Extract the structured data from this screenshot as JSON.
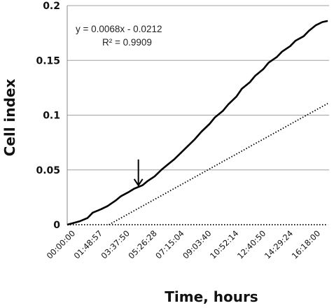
{
  "chart_data": {
    "type": "line",
    "xlabel": "Time, hours",
    "ylabel": "Cell index",
    "ylim": [
      0,
      0.2
    ],
    "y_ticks": [
      "0",
      "0.05",
      "0.1",
      "0.15",
      "0.2"
    ],
    "x_tick_labels": [
      "00:00:00",
      "01:48:57",
      "03:37:50",
      "05:26:28",
      "07:15:04",
      "09:03:40",
      "10:52:14",
      "12:40:50",
      "14:29:24",
      "16:18:00"
    ],
    "gridlines": "horizontal",
    "series": [
      {
        "style": "solid",
        "color": "#000000",
        "x": [
          0,
          0.9,
          1.5,
          1.9,
          2.5,
          3.0,
          3.6,
          4.0,
          4.6,
          5.0,
          5.6,
          6.0,
          6.5,
          7.0,
          7.5,
          8.0,
          8.5,
          9.0,
          9.5,
          10.0,
          10.6,
          11.0,
          11.6,
          12.0,
          12.6,
          13.0,
          13.6,
          14.0,
          14.6,
          15.0,
          15.6,
          16.0,
          16.6,
          17.0,
          17.6,
          18.0,
          18.5,
          19.0,
          19.4
        ],
        "y": [
          0,
          0.003,
          0.006,
          0.011,
          0.014,
          0.017,
          0.022,
          0.026,
          0.03,
          0.033,
          0.036,
          0.04,
          0.044,
          0.05,
          0.055,
          0.06,
          0.066,
          0.072,
          0.078,
          0.085,
          0.092,
          0.098,
          0.104,
          0.11,
          0.117,
          0.124,
          0.13,
          0.136,
          0.142,
          0.148,
          0.153,
          0.158,
          0.163,
          0.168,
          0.172,
          0.177,
          0.182,
          0.185,
          0.186
        ]
      },
      {
        "style": "dotted",
        "color": "#000000",
        "x": [
          3.1,
          19.4
        ],
        "y": [
          0,
          0.1107
        ]
      },
      {
        "style": "dotted",
        "color": "#000000",
        "x": [
          0,
          19.4
        ],
        "y": [
          0,
          0
        ]
      }
    ],
    "trendline": {
      "equation": "y = 0.0068x - 0.0212",
      "r_squared": "R² = 0.9909"
    },
    "annotation": {
      "type": "arrow",
      "x": 5.3,
      "y": 0.034
    }
  }
}
